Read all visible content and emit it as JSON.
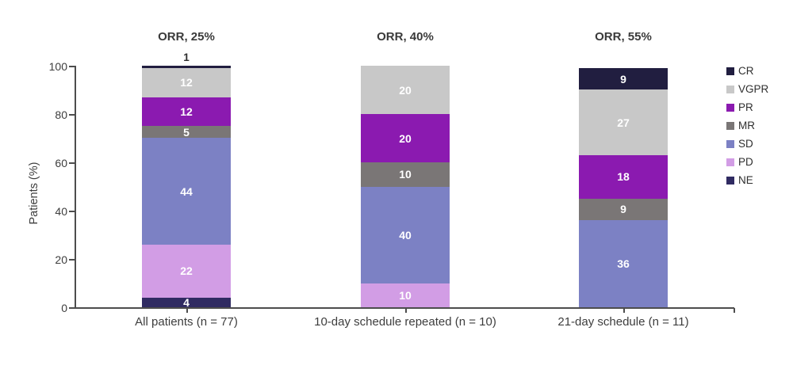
{
  "chart_data": {
    "type": "bar",
    "stacked": true,
    "ylabel": "Patients (%)",
    "ylim": [
      0,
      100
    ],
    "yticks": [
      0,
      20,
      40,
      60,
      80,
      100
    ],
    "grid": false,
    "legend_position": "right",
    "categories": [
      "All patients (n = 77)",
      "10-day schedule repeated (n = 10)",
      "21-day schedule (n = 11)"
    ],
    "orr_annotations": [
      "ORR, 25%",
      "ORR, 40%",
      "ORR, 55%"
    ],
    "series": [
      {
        "name": "CR",
        "color": "#211e40",
        "values": [
          1,
          0,
          9
        ]
      },
      {
        "name": "VGPR",
        "color": "#c8c8c8",
        "values": [
          12,
          20,
          27
        ]
      },
      {
        "name": "PR",
        "color": "#8b1ab0",
        "values": [
          12,
          20,
          18
        ]
      },
      {
        "name": "MR",
        "color": "#7a7676",
        "values": [
          5,
          10,
          9
        ]
      },
      {
        "name": "SD",
        "color": "#7c81c4",
        "values": [
          44,
          40,
          36
        ]
      },
      {
        "name": "PD",
        "color": "#d29de5",
        "values": [
          22,
          10,
          0
        ]
      },
      {
        "name": "NE",
        "color": "#302b62",
        "values": [
          4,
          0,
          0
        ]
      }
    ]
  }
}
